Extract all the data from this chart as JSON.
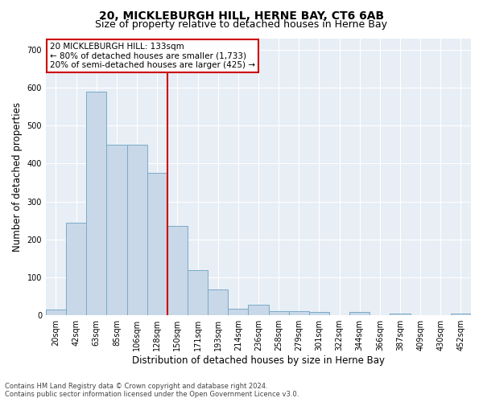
{
  "title": "20, MICKLEBURGH HILL, HERNE BAY, CT6 6AB",
  "subtitle": "Size of property relative to detached houses in Herne Bay",
  "xlabel": "Distribution of detached houses by size in Herne Bay",
  "ylabel": "Number of detached properties",
  "bar_color": "#c8d8e8",
  "bar_edge_color": "#7aaac8",
  "highlighted_bar_color": "#c8d8e8",
  "highlighted_bar_edge_color": "#cc3333",
  "vline_color": "#cc0000",
  "vline_x_index": 6,
  "annotation_text": "20 MICKLEBURGH HILL: 133sqm\n← 80% of detached houses are smaller (1,733)\n20% of semi-detached houses are larger (425) →",
  "categories": [
    "20sqm",
    "42sqm",
    "63sqm",
    "85sqm",
    "106sqm",
    "128sqm",
    "150sqm",
    "171sqm",
    "193sqm",
    "214sqm",
    "236sqm",
    "258sqm",
    "279sqm",
    "301sqm",
    "322sqm",
    "344sqm",
    "366sqm",
    "387sqm",
    "409sqm",
    "430sqm",
    "452sqm"
  ],
  "bar_heights": [
    15,
    245,
    590,
    450,
    450,
    375,
    235,
    120,
    68,
    18,
    28,
    12,
    10,
    8,
    0,
    8,
    0,
    5,
    0,
    0,
    5
  ],
  "ylim": [
    0,
    730
  ],
  "yticks": [
    0,
    100,
    200,
    300,
    400,
    500,
    600,
    700
  ],
  "background_color": "#e8eef5",
  "footer_text": "Contains HM Land Registry data © Crown copyright and database right 2024.\nContains public sector information licensed under the Open Government Licence v3.0.",
  "annotation_box_color": "#ffffff",
  "annotation_box_edge_color": "#cc0000",
  "fig_bg_color": "#ffffff",
  "title_fontsize": 10,
  "subtitle_fontsize": 9,
  "ylabel_fontsize": 8.5,
  "xlabel_fontsize": 8.5,
  "tick_fontsize": 7,
  "annotation_fontsize": 7.5,
  "footer_fontsize": 6
}
